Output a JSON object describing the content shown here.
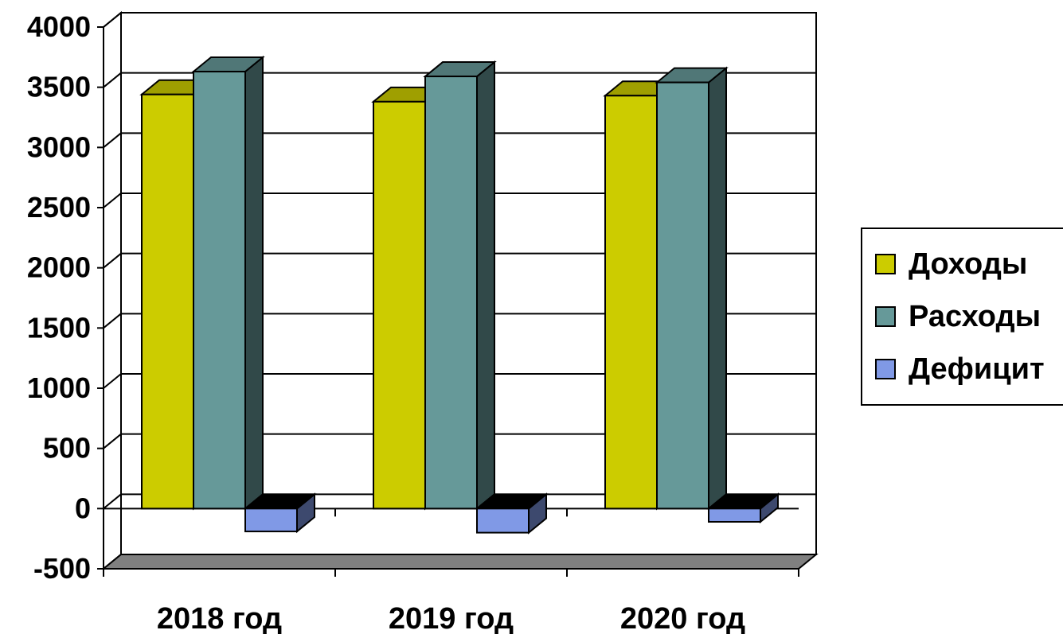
{
  "chart_data": {
    "type": "bar",
    "title": "",
    "xlabel": "",
    "ylabel": "",
    "categories": [
      "2018 год",
      "2019 год",
      "2020 год"
    ],
    "series": [
      {
        "name": "Доходы",
        "values": [
          3440,
          3380,
          3430
        ],
        "color": "#cccc00"
      },
      {
        "name": "Расходы",
        "values": [
          3630,
          3590,
          3540
        ],
        "color": "#669999"
      },
      {
        "name": "Дефицит",
        "values": [
          -190,
          -200,
          -110
        ],
        "color": "#8099e6"
      }
    ],
    "ylim": [
      -500,
      4000
    ],
    "yticks": [
      -500,
      0,
      500,
      1000,
      1500,
      2000,
      2500,
      3000,
      3500,
      4000
    ],
    "ytick_labels": [
      "-500",
      "0",
      "500",
      "1000",
      "1500",
      "2000",
      "2500",
      "3000",
      "3500",
      "4000"
    ],
    "grid": true,
    "legend": "right",
    "three_d": true
  }
}
